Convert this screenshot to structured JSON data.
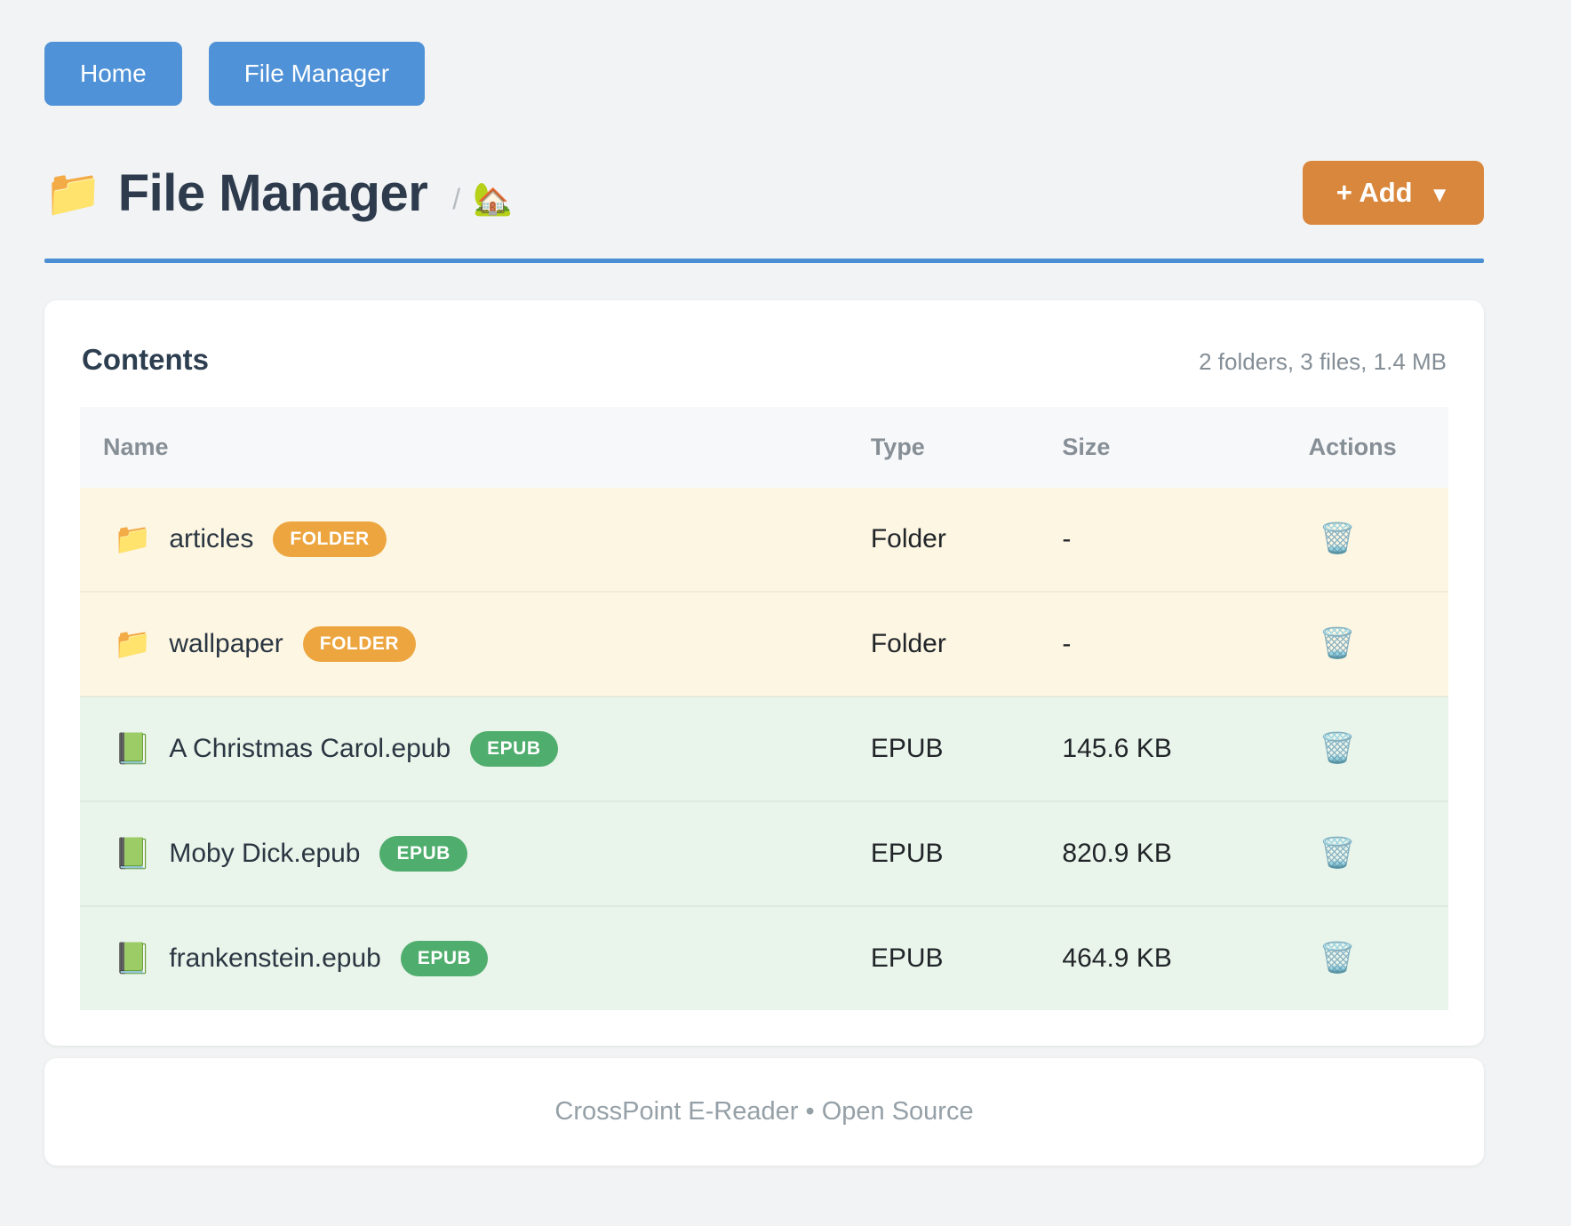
{
  "nav": {
    "home_label": "Home",
    "file_manager_label": "File Manager"
  },
  "header": {
    "title_icon": "📁",
    "title": "File Manager",
    "breadcrumb_separator": "/",
    "breadcrumb_home_icon": "🏡",
    "add_button_label": "+ Add",
    "add_button_caret": "▼"
  },
  "contents": {
    "heading": "Contents",
    "summary": "2 folders, 3 files, 1.4 MB",
    "columns": [
      "Name",
      "Type",
      "Size",
      "Actions"
    ],
    "delete_icon": "🗑️",
    "rows": [
      {
        "icon": "📁",
        "name": "articles",
        "kind": "folder",
        "badge": "FOLDER",
        "type": "Folder",
        "size": "-"
      },
      {
        "icon": "📁",
        "name": "wallpaper",
        "kind": "folder",
        "badge": "FOLDER",
        "type": "Folder",
        "size": "-"
      },
      {
        "icon": "📗",
        "name": "A Christmas Carol.epub",
        "kind": "epub",
        "badge": "EPUB",
        "type": "EPUB",
        "size": "145.6 KB"
      },
      {
        "icon": "📗",
        "name": "Moby Dick.epub",
        "kind": "epub",
        "badge": "EPUB",
        "type": "EPUB",
        "size": "820.9 KB"
      },
      {
        "icon": "📗",
        "name": "frankenstein.epub",
        "kind": "epub",
        "badge": "EPUB",
        "type": "EPUB",
        "size": "464.9 KB"
      }
    ]
  },
  "footer": {
    "text": "CrossPoint E-Reader • Open Source"
  },
  "colors": {
    "nav_button": "#4f92d7",
    "add_button": "#d9873c",
    "rule_blue": "#4a8fd3",
    "folder_badge": "#eca53f",
    "epub_badge": "#4fad6d",
    "folder_row_bg": "#fdf6e2",
    "epub_row_bg": "#e9f4ea"
  }
}
